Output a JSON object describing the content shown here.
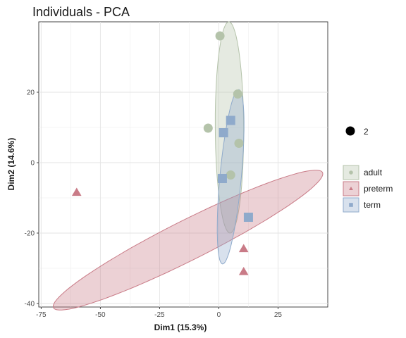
{
  "chart_data": {
    "type": "scatter",
    "title": "Individuals - PCA",
    "xlabel": "Dim1 (15.3%)",
    "ylabel": "Dim2 (14.6%)",
    "xlim": [
      -76,
      46
    ],
    "ylim": [
      -41,
      40
    ],
    "xticks": [
      -75,
      -50,
      -25,
      0,
      25
    ],
    "yticks": [
      -40,
      -20,
      0,
      20
    ],
    "grid": true,
    "legend_position": "right",
    "size_legend": {
      "label": "2"
    },
    "series": [
      {
        "name": "adult",
        "marker": "circle",
        "color": "#b4c3aa",
        "points": [
          {
            "x": 0.5,
            "y": 36
          },
          {
            "x": 8,
            "y": 19.5
          },
          {
            "x": -4.5,
            "y": 9.8
          },
          {
            "x": 8.5,
            "y": 5.5
          },
          {
            "x": 5,
            "y": -3.5
          }
        ],
        "ellipse": {
          "center": [
            4.5,
            10
          ],
          "axes": [
            6,
            30
          ],
          "angle": 0.5
        }
      },
      {
        "name": "preterm",
        "marker": "triangle",
        "color": "#c97b87",
        "points": [
          {
            "x": -60,
            "y": -8.5
          },
          {
            "x": 10.5,
            "y": -24.5
          },
          {
            "x": 10.5,
            "y": -31
          }
        ],
        "ellipse": {
          "center": [
            -13,
            -22
          ],
          "axes": [
            60,
            6
          ],
          "angle": 18.5
        }
      },
      {
        "name": "term",
        "marker": "square",
        "color": "#8faacb",
        "points": [
          {
            "x": 5,
            "y": 12
          },
          {
            "x": 2,
            "y": 8.5
          },
          {
            "x": 1.5,
            "y": -4.5
          },
          {
            "x": 12.5,
            "y": -15.5
          }
        ],
        "ellipse": {
          "center": [
            5,
            -4
          ],
          "axes": [
            4.5,
            25
          ],
          "angle": -8
        }
      }
    ]
  }
}
